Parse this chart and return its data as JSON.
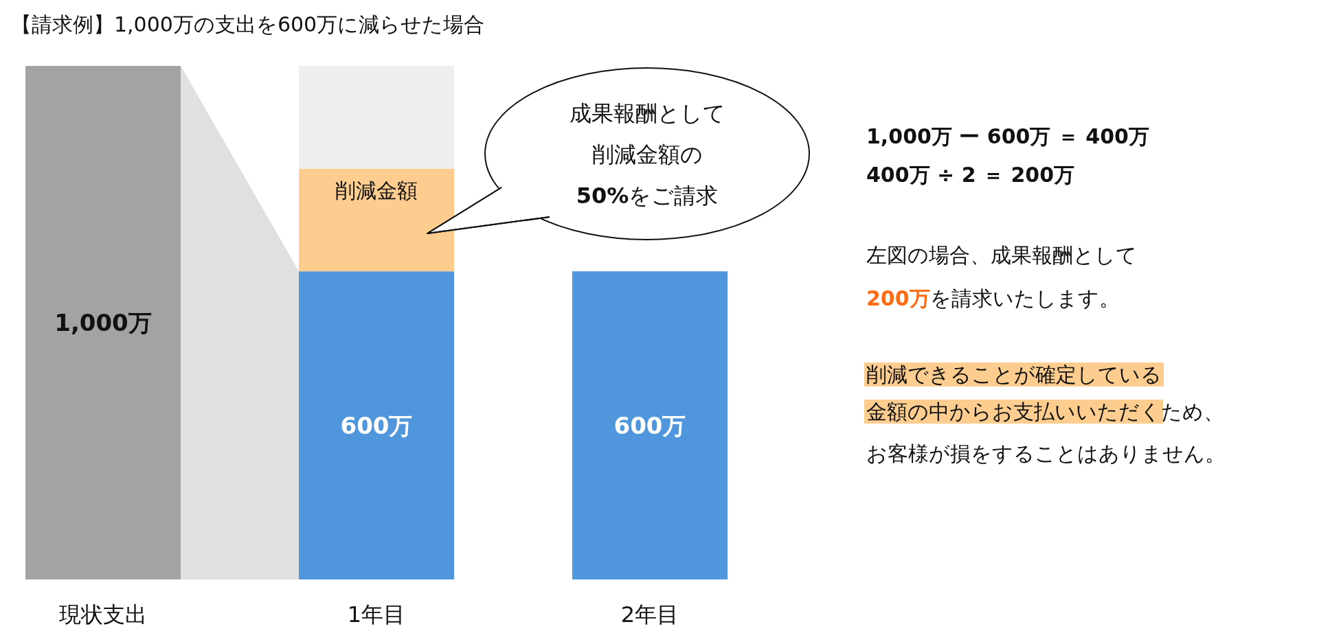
{
  "chart_data": {
    "type": "bar",
    "stacked": true,
    "title": "【請求例】1,000万の支出を600万に減らせた場合",
    "categories": [
      "現状支出",
      "1年目",
      "2年目"
    ],
    "series": [
      {
        "colors": [
          "#a3a3a3",
          "#4f96dc",
          "#4f96dc"
        ],
        "values": [
          1000,
          600,
          600
        ],
        "value_labels": [
          "1,000万",
          "600万",
          "600万"
        ]
      },
      {
        "name": "削減金額",
        "color": "#fdcd8f",
        "values": [
          null,
          200,
          null
        ]
      },
      {
        "color": "#eeeeee",
        "values": [
          null,
          200,
          null
        ]
      }
    ],
    "annotations": [
      "成果報酬として",
      "削減金額の",
      "**50%**をご請求",
      "1,000万 ー 600万 ＝ 400万",
      "400万 ÷ 2 ＝ 200万",
      "左図の場合、成果報酬として",
      "200万",
      "を請求いたします。",
      "削減できることが確定している",
      "金額の中からお支払いいただく",
      "ため、",
      "お客様が損をすることはありません。"
    ]
  }
}
